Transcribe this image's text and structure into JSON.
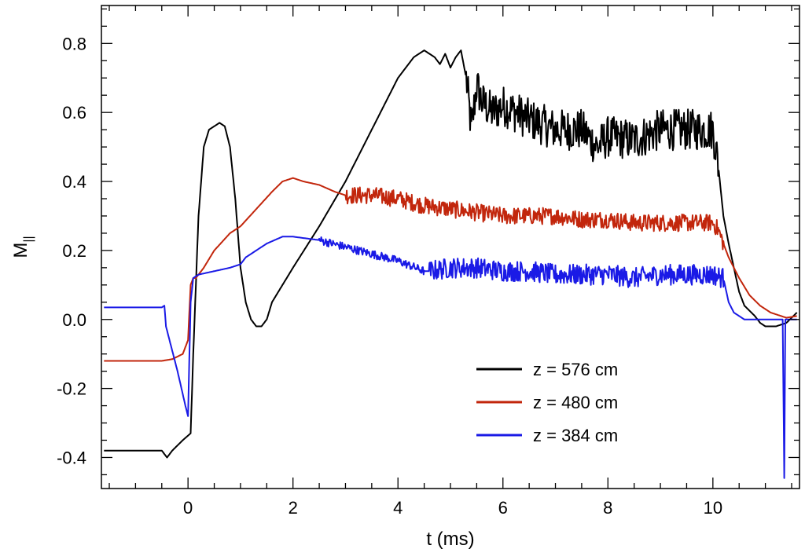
{
  "chart_data": {
    "type": "line",
    "xlabel": "t (ms)",
    "ylabel_main": "M",
    "ylabel_sub": "||",
    "xlim": [
      -1.65,
      11.65
    ],
    "ylim": [
      -0.49,
      0.91
    ],
    "xticks": [
      0,
      2,
      4,
      6,
      8,
      10
    ],
    "xtick_labels": [
      "0",
      "2",
      "4",
      "6",
      "8",
      "10"
    ],
    "yticks": [
      -0.4,
      -0.2,
      0.0,
      0.2,
      0.4,
      0.6,
      0.8
    ],
    "ytick_labels": [
      "-0.4",
      "-0.2",
      "0.0",
      "0.2",
      "0.4",
      "0.6",
      "0.8"
    ],
    "x_minor_step": 0.5,
    "y_minor_step": 0.05,
    "grid": false,
    "legend_position": "lower-right",
    "series": [
      {
        "name": "z = 576 cm",
        "color": "#000000",
        "x": [
          -1.6,
          -0.5,
          -0.4,
          -0.3,
          -0.1,
          0.05,
          0.1,
          0.2,
          0.3,
          0.4,
          0.5,
          0.6,
          0.7,
          0.8,
          0.9,
          1.0,
          1.1,
          1.2,
          1.3,
          1.4,
          1.5,
          1.6,
          1.8,
          2.0,
          2.5,
          3.0,
          3.5,
          4.0,
          4.3,
          4.5,
          4.7,
          4.8,
          4.9,
          5.0,
          5.1,
          5.2,
          5.3,
          5.4,
          5.5,
          5.6,
          5.8,
          6.0,
          6.5,
          7.0,
          7.5,
          7.8,
          8.0,
          8.5,
          9.0,
          9.5,
          9.8,
          10.0,
          10.1,
          10.2,
          10.3,
          10.4,
          10.5,
          10.6,
          10.8,
          10.9,
          11.0,
          11.2,
          11.4,
          11.6
        ],
        "y": [
          -0.38,
          -0.38,
          -0.4,
          -0.38,
          -0.35,
          -0.33,
          -0.1,
          0.3,
          0.5,
          0.55,
          0.56,
          0.57,
          0.56,
          0.5,
          0.35,
          0.15,
          0.05,
          0.0,
          -0.02,
          -0.02,
          0.0,
          0.05,
          0.1,
          0.15,
          0.27,
          0.4,
          0.55,
          0.7,
          0.76,
          0.78,
          0.76,
          0.74,
          0.77,
          0.73,
          0.76,
          0.78,
          0.7,
          0.55,
          0.68,
          0.63,
          0.6,
          0.62,
          0.58,
          0.55,
          0.55,
          0.5,
          0.53,
          0.52,
          0.55,
          0.55,
          0.55,
          0.55,
          0.45,
          0.3,
          0.22,
          0.15,
          0.08,
          0.04,
          0.01,
          -0.01,
          -0.02,
          -0.02,
          -0.01,
          0.02
        ],
        "noise": [
          [
            5.3,
            10.1,
            0.06
          ]
        ]
      },
      {
        "name": "z = 480 cm",
        "color": "#c2260c",
        "x": [
          -1.6,
          -0.5,
          -0.3,
          -0.1,
          0.0,
          0.05,
          0.1,
          0.15,
          0.3,
          0.5,
          0.8,
          1.0,
          1.3,
          1.6,
          1.8,
          2.0,
          2.2,
          2.5,
          2.8,
          3.0,
          3.2,
          3.5,
          4.0,
          4.5,
          5.0,
          5.5,
          6.0,
          6.5,
          7.0,
          7.5,
          8.0,
          8.5,
          9.0,
          9.5,
          10.0,
          10.1,
          10.2,
          10.3,
          10.5,
          10.7,
          10.9,
          11.1,
          11.3,
          11.4,
          11.6
        ],
        "y": [
          -0.12,
          -0.12,
          -0.115,
          -0.1,
          -0.06,
          0.1,
          0.12,
          0.12,
          0.15,
          0.2,
          0.25,
          0.27,
          0.32,
          0.37,
          0.4,
          0.41,
          0.4,
          0.39,
          0.37,
          0.36,
          0.36,
          0.36,
          0.35,
          0.33,
          0.32,
          0.31,
          0.3,
          0.3,
          0.3,
          0.29,
          0.29,
          0.28,
          0.28,
          0.28,
          0.28,
          0.26,
          0.22,
          0.18,
          0.12,
          0.07,
          0.04,
          0.02,
          0.01,
          0.005,
          0.01
        ],
        "noise": [
          [
            3.0,
            10.2,
            0.025
          ]
        ]
      },
      {
        "name": "z = 384 cm",
        "color": "#1a1ae6",
        "x": [
          -1.6,
          -0.5,
          -0.45,
          -0.42,
          -0.2,
          -0.05,
          0.0,
          0.05,
          0.1,
          0.2,
          0.5,
          0.8,
          1.0,
          1.05,
          1.1,
          1.2,
          1.5,
          1.8,
          2.0,
          2.5,
          3.0,
          3.5,
          4.0,
          4.5,
          4.6,
          5.0,
          5.5,
          6.0,
          6.5,
          7.0,
          7.5,
          8.0,
          8.5,
          9.0,
          9.5,
          10.0,
          10.2,
          10.3,
          10.4,
          10.6,
          10.8,
          11.0,
          11.2,
          11.3,
          11.33,
          11.36,
          11.38,
          11.4,
          11.6
        ],
        "y": [
          0.035,
          0.035,
          0.04,
          -0.02,
          -0.15,
          -0.25,
          -0.28,
          0.05,
          0.12,
          0.13,
          0.14,
          0.15,
          0.16,
          0.17,
          0.18,
          0.19,
          0.22,
          0.24,
          0.24,
          0.23,
          0.21,
          0.19,
          0.17,
          0.14,
          0.14,
          0.15,
          0.15,
          0.14,
          0.14,
          0.13,
          0.13,
          0.13,
          0.12,
          0.13,
          0.13,
          0.13,
          0.12,
          0.05,
          0.02,
          0.0,
          0.0,
          0.0,
          0.0,
          0.0,
          0.0,
          -0.46,
          0.0,
          0.0,
          0.0
        ],
        "noise": [
          [
            2.5,
            4.5,
            0.012
          ],
          [
            4.6,
            10.2,
            0.03
          ]
        ]
      }
    ]
  }
}
